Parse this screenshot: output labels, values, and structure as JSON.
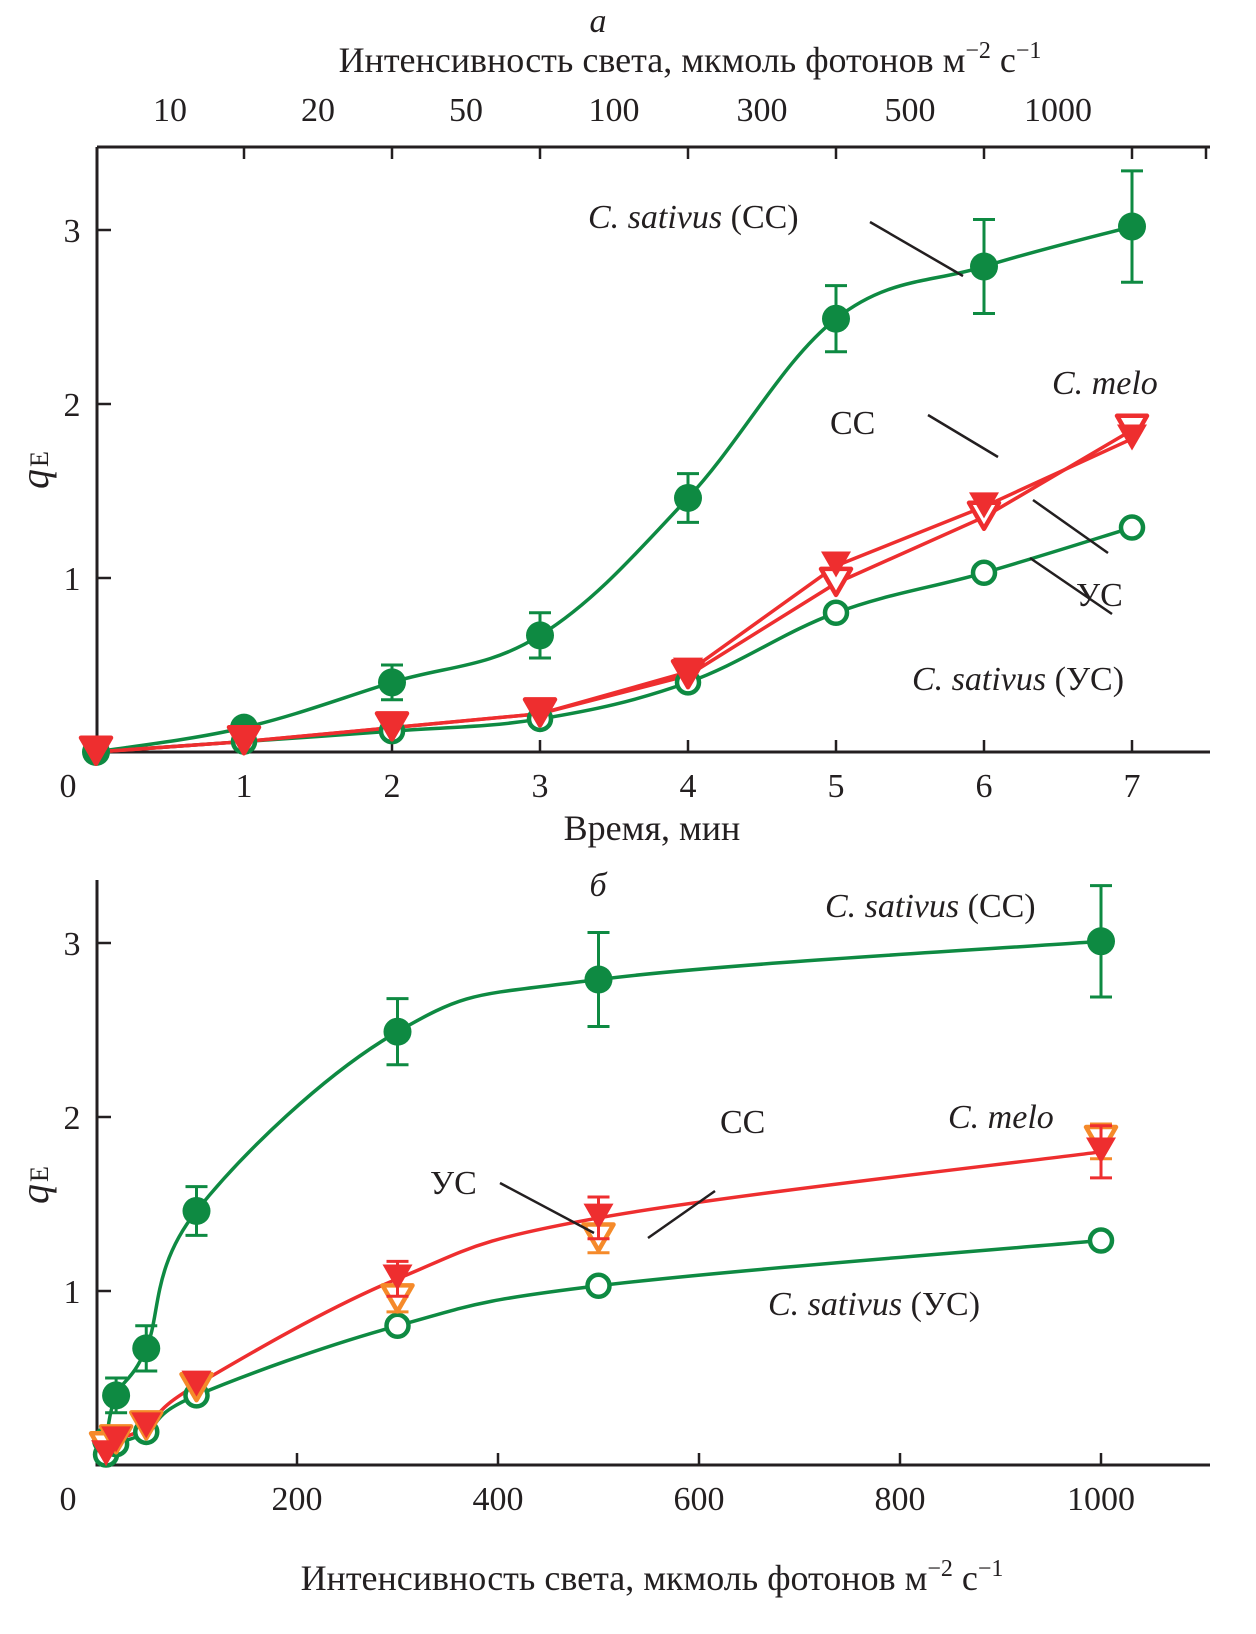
{
  "colors": {
    "sativus": "#0e8a42",
    "melo_cc": "#ee2e2f",
    "melo_uc_a": "#ee2e2f",
    "melo_uc_b": "#f58a2a",
    "axis": "#231f20"
  },
  "chart_data": [
    {
      "type": "line",
      "panel_label": "а",
      "title": "",
      "xlabel": "Время, мин",
      "ylabel": "q",
      "ylabel_subscript": "E",
      "x_top_label": "Интенсивность света, мкмоль фотонов м",
      "x_top_label_sup1": "−2",
      "x_top_label_mid": " с",
      "x_top_label_sup2": "−1",
      "xlim": [
        0,
        7.5
      ],
      "ylim": [
        0,
        3.5
      ],
      "xticks": [
        0,
        1,
        2,
        3,
        4,
        5,
        6,
        7
      ],
      "xtick_labels": [
        "0",
        "1",
        "2",
        "3",
        "4",
        "5",
        "6",
        "7"
      ],
      "yticks": [
        1,
        2,
        3
      ],
      "ytick_labels": [
        "1",
        "2",
        "3"
      ],
      "top_tick_labels": [
        "10",
        "20",
        "50",
        "100",
        "300",
        "500",
        "1000"
      ],
      "grid": false,
      "x": [
        0,
        1,
        2,
        3,
        4,
        5,
        6,
        7
      ],
      "series": [
        {
          "name": "C. sativus (CC)",
          "marker": "filled-circle",
          "color_key": "sativus",
          "values": [
            0.0,
            0.14,
            0.4,
            0.67,
            1.46,
            2.49,
            2.79,
            3.02
          ],
          "errors": [
            0,
            0,
            0.1,
            0.13,
            0.14,
            0.19,
            0.27,
            0.32
          ]
        },
        {
          "name": "C. sativus (УС)",
          "marker": "open-circle",
          "color_key": "sativus",
          "values": [
            0.0,
            0.06,
            0.12,
            0.19,
            0.4,
            0.8,
            1.03,
            1.29
          ],
          "errors": [
            0,
            0,
            0,
            0,
            0,
            0,
            0,
            0
          ]
        },
        {
          "name": "C. melo CC",
          "marker": "filled-triangle-down",
          "color_key": "melo_cc",
          "values": [
            0.0,
            0.06,
            0.14,
            0.22,
            0.46,
            1.07,
            1.41,
            1.8
          ],
          "errors": [
            0,
            0,
            0,
            0,
            0,
            0,
            0,
            0
          ]
        },
        {
          "name": "C. melo УС",
          "marker": "open-triangle-down",
          "color_key": "melo_uc_a",
          "values": [
            0.0,
            0.06,
            0.14,
            0.22,
            0.44,
            0.97,
            1.35,
            1.85
          ],
          "errors": [
            0,
            0,
            0,
            0,
            0,
            0,
            0,
            0
          ]
        }
      ],
      "annotations": [
        {
          "italic": "C. sativus",
          "normal": " (CC)"
        },
        {
          "italic": "C. melo",
          "normal": ""
        },
        {
          "italic": "",
          "normal": "CC"
        },
        {
          "italic": "",
          "normal": "УС"
        },
        {
          "italic": "C. sativus",
          "normal": " (УС)"
        }
      ]
    },
    {
      "type": "line",
      "panel_label": "б",
      "title": "",
      "xlabel": "Интенсивность света, мкмоль фотонов м",
      "xlabel_sup1": "−2",
      "xlabel_mid": " с",
      "xlabel_sup2": "−1",
      "ylabel": "q",
      "ylabel_subscript": "E",
      "xlim": [
        0,
        1100
      ],
      "ylim": [
        0,
        3.5
      ],
      "xticks": [
        0,
        200,
        400,
        600,
        800,
        1000
      ],
      "xtick_labels": [
        "0",
        "200",
        "400",
        "600",
        "800",
        "1000"
      ],
      "yticks": [
        1,
        2,
        3
      ],
      "ytick_labels": [
        "1",
        "2",
        "3"
      ],
      "grid": false,
      "x": [
        10,
        20,
        50,
        100,
        300,
        500,
        1000
      ],
      "series": [
        {
          "name": "C. sativus (CC)",
          "marker": "filled-circle",
          "color_key": "sativus",
          "values": [
            0.14,
            0.4,
            0.67,
            1.46,
            2.49,
            2.79,
            3.01
          ],
          "errors": [
            0,
            0.1,
            0.13,
            0.14,
            0.19,
            0.27,
            0.32
          ]
        },
        {
          "name": "C. sativus (УС)",
          "marker": "open-circle",
          "color_key": "sativus",
          "values": [
            0.06,
            0.12,
            0.19,
            0.4,
            0.8,
            1.03,
            1.29
          ],
          "errors": [
            0,
            0,
            0,
            0,
            0,
            0,
            0
          ]
        },
        {
          "name": "C. melo CC",
          "marker": "filled-triangle-down",
          "color_key": "melo_cc",
          "values": [
            0.06,
            0.14,
            0.22,
            0.46,
            1.07,
            1.42,
            1.8
          ],
          "errors": [
            0,
            0,
            0,
            0,
            0.1,
            0.12,
            0.15
          ]
        },
        {
          "name": "C. melo УС",
          "marker": "open-triangle-down",
          "color_key": "melo_uc_b",
          "values": [
            0.1,
            0.14,
            0.22,
            0.44,
            0.95,
            1.3,
            1.86
          ],
          "errors": [
            0,
            0,
            0,
            0,
            0.07,
            0.08,
            0.1
          ]
        }
      ],
      "annotations": [
        {
          "italic": "C. sativus",
          "normal": " (CC)"
        },
        {
          "italic": "C. melo",
          "normal": ""
        },
        {
          "italic": "",
          "normal": "CC"
        },
        {
          "italic": "",
          "normal": "УС"
        },
        {
          "italic": "C. sativus",
          "normal": " (УС)"
        }
      ]
    }
  ]
}
